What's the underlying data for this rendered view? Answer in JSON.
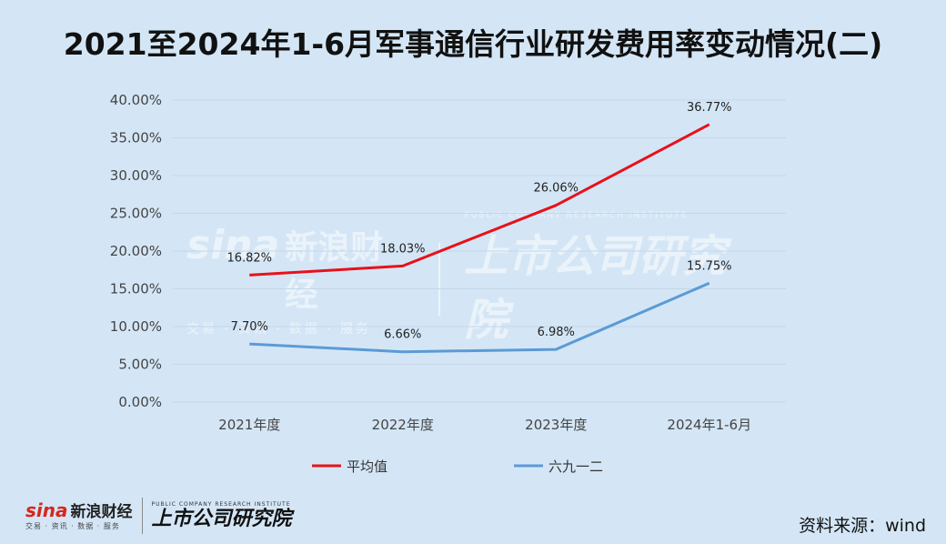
{
  "title": "2021至2024年1-6月军事通信行业研发费用率变动情况(二)",
  "source": "资料来源：wind",
  "logo": {
    "sina_mark": "sina",
    "sina_cn": "新浪财经",
    "sina_sub": "交易 · 资讯 · 数据 · 服务",
    "institute_en": "PUBLIC COMPANY RESEARCH INSTITUTE",
    "institute_cn": "上市公司研究院"
  },
  "chart_data": {
    "type": "line",
    "title": "2021至2024年1-6月军事通信行业研发费用率变动情况(二)",
    "xlabel": "",
    "ylabel": "",
    "ylim": [
      0,
      40
    ],
    "y_ticks": [
      "0.00%",
      "5.00%",
      "10.00%",
      "15.00%",
      "20.00%",
      "25.00%",
      "30.00%",
      "35.00%",
      "40.00%"
    ],
    "grid": true,
    "legend_position": "bottom",
    "categories": [
      "2021年度",
      "2022年度",
      "2023年度",
      "2024年1-6月"
    ],
    "series": [
      {
        "name": "平均值",
        "color": "#e8111a",
        "values": [
          16.82,
          18.03,
          26.06,
          36.77
        ],
        "labels": [
          "16.82%",
          "18.03%",
          "26.06%",
          "36.77%"
        ]
      },
      {
        "name": "六九一二",
        "color": "#5b9bd5",
        "values": [
          7.7,
          6.66,
          6.98,
          15.75
        ],
        "labels": [
          "7.70%",
          "6.66%",
          "6.98%",
          "15.75%"
        ]
      }
    ]
  }
}
